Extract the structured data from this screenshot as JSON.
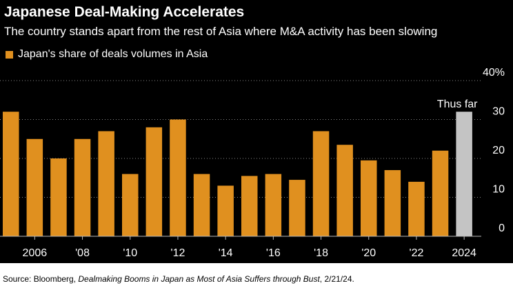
{
  "chart_data": {
    "type": "bar",
    "title": "Japanese Deal-Making Accelerates",
    "subtitle": "The country stands apart from the rest of Asia where M&A activity has been slowing",
    "series": [
      {
        "name": "Japan's share of deals volumes in Asia",
        "color": "#e0901f",
        "x": [
          2005,
          2006,
          2007,
          2008,
          2009,
          2010,
          2011,
          2012,
          2013,
          2014,
          2015,
          2016,
          2017,
          2018,
          2019,
          2020,
          2021,
          2022,
          2023,
          2024
        ],
        "values": [
          32,
          25,
          20,
          25,
          27,
          16,
          28,
          30,
          16,
          13,
          15.5,
          16,
          14.5,
          27,
          23.5,
          19.5,
          17,
          14,
          22,
          32
        ]
      }
    ],
    "highlight": {
      "x": 2024,
      "color": "#c4c4c4",
      "label": "Thus far"
    },
    "xticks": [
      {
        "x": 2006,
        "label": "2006"
      },
      {
        "x": 2008,
        "label": "'08"
      },
      {
        "x": 2010,
        "label": "'10"
      },
      {
        "x": 2012,
        "label": "'12"
      },
      {
        "x": 2014,
        "label": "'14"
      },
      {
        "x": 2016,
        "label": "'16"
      },
      {
        "x": 2018,
        "label": "'18"
      },
      {
        "x": 2020,
        "label": "'20"
      },
      {
        "x": 2022,
        "label": "'22"
      },
      {
        "x": 2024,
        "label": "2024"
      }
    ],
    "yticks": [
      {
        "v": 0,
        "label": "0"
      },
      {
        "v": 10,
        "label": "10"
      },
      {
        "v": 20,
        "label": "20"
      },
      {
        "v": 30,
        "label": "30"
      },
      {
        "v": 40,
        "label": "40%"
      }
    ],
    "ylim": [
      0,
      40
    ],
    "grid": true,
    "grid_style": "dotted",
    "yaxis_side": "right",
    "legend_position": "top-left",
    "background": "#000000",
    "text_color": "#ffffff"
  },
  "source": {
    "prefix": "Source: Bloomberg, ",
    "title": "Dealmaking Booms in Japan as Most of Asia Suffers through Bust",
    "suffix": ", 2/21/24."
  }
}
